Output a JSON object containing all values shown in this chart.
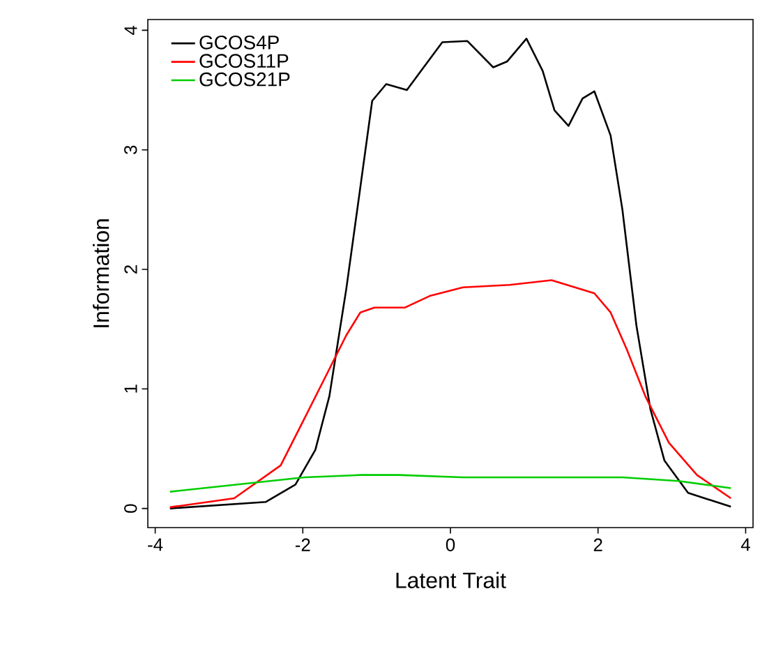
{
  "chart_data": {
    "type": "line",
    "xlabel": "Latent Trait",
    "ylabel": "Information",
    "xlim": [
      -4.1,
      4.1
    ],
    "ylim": [
      -0.16,
      4.09
    ],
    "xticks": [
      -4,
      -2,
      0,
      2,
      4
    ],
    "yticks": [
      0,
      1,
      2,
      3,
      4
    ],
    "legend": "top left",
    "grid": false,
    "marker": "none",
    "line_style": "solid",
    "series": [
      {
        "name": "GCOS4P",
        "color": "#000000",
        "x": [
          -3.8,
          -2.5,
          -2.1,
          -1.83,
          -1.64,
          -1.41,
          -1.22,
          -1.06,
          -0.87,
          -0.59,
          -0.4,
          -0.11,
          0.23,
          0.58,
          0.77,
          1.03,
          1.25,
          1.41,
          1.6,
          1.79,
          1.95,
          2.17,
          2.33,
          2.52,
          2.71,
          2.9,
          3.22,
          3.8
        ],
        "values": [
          0,
          0.055,
          0.2,
          0.49,
          0.94,
          1.84,
          2.69,
          3.41,
          3.55,
          3.5,
          3.66,
          3.9,
          3.91,
          3.69,
          3.74,
          3.93,
          3.66,
          3.33,
          3.2,
          3.43,
          3.49,
          3.12,
          2.5,
          1.53,
          0.83,
          0.4,
          0.13,
          0.015
        ]
      },
      {
        "name": "GCOS11P",
        "color": "#ff0000",
        "x": [
          -3.8,
          -2.93,
          -2.3,
          -1.98,
          -1.67,
          -1.41,
          -1.22,
          -1.03,
          -0.62,
          -0.27,
          0.17,
          0.8,
          1.37,
          1.95,
          2.17,
          2.39,
          2.64,
          2.96,
          3.34,
          3.8
        ],
        "values": [
          0.01,
          0.085,
          0.36,
          0.75,
          1.13,
          1.45,
          1.64,
          1.68,
          1.68,
          1.78,
          1.85,
          1.87,
          1.91,
          1.8,
          1.64,
          1.33,
          0.94,
          0.55,
          0.28,
          0.085
        ]
      },
      {
        "name": "GCOS21P",
        "color": "#00cd00",
        "x": [
          -3.8,
          -1.98,
          -1.22,
          -0.7,
          0.17,
          2.33,
          3.09,
          3.8
        ],
        "values": [
          0.14,
          0.26,
          0.28,
          0.28,
          0.26,
          0.26,
          0.23,
          0.17
        ]
      }
    ]
  }
}
